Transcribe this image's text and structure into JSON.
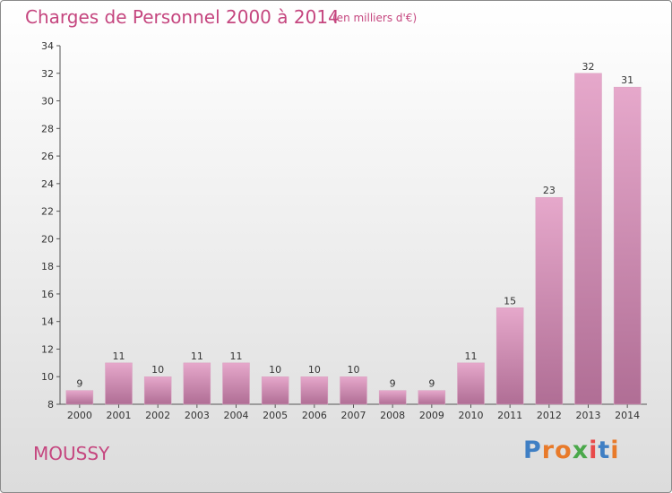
{
  "header": {
    "title": "Charges de Personnel 2000 à 2014",
    "subtitle": "(en milliers d'€)"
  },
  "footer": {
    "commune": "MOUSSY",
    "logo_text": "Proxiti"
  },
  "colors": {
    "accent": "#c5467f",
    "bar_light": "#e6a8cb",
    "bar_dark": "#b06e95",
    "logo_letters": [
      "#3f7fc4",
      "#e87a2a",
      "#e87a2a",
      "#4aa84a",
      "#e84a4a",
      "#3f7fc4",
      "#e87a2a"
    ]
  },
  "chart_data": {
    "type": "bar",
    "categories": [
      "2000",
      "2001",
      "2002",
      "2003",
      "2004",
      "2005",
      "2006",
      "2007",
      "2008",
      "2009",
      "2010",
      "2011",
      "2012",
      "2013",
      "2014"
    ],
    "values": [
      9,
      11,
      10,
      11,
      11,
      10,
      10,
      10,
      9,
      9,
      11,
      15,
      23,
      32,
      31
    ],
    "data_labels": [
      "9",
      "11",
      "10",
      "11",
      "11",
      "10",
      "10",
      "10",
      "9",
      "9",
      "11",
      "15",
      "23",
      "32",
      "31"
    ],
    "title": "Charges de Personnel 2000 à 2014",
    "subtitle": "(en milliers d'€)",
    "xlabel": "",
    "ylabel": "",
    "ylim": [
      8,
      34
    ],
    "yticks": [
      8,
      10,
      12,
      14,
      16,
      18,
      20,
      22,
      24,
      26,
      28,
      30,
      32,
      34
    ],
    "grid": false,
    "legend": "none"
  }
}
